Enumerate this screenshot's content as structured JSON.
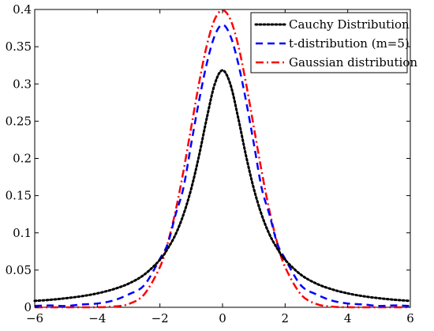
{
  "chart_data": {
    "type": "line",
    "title": "",
    "xlabel": "",
    "ylabel": "",
    "xlim": [
      -6,
      6
    ],
    "ylim": [
      0,
      0.4
    ],
    "xticks": [
      "−6",
      "−4",
      "−2",
      "0",
      "2",
      "4",
      "6"
    ],
    "xtick_values": [
      -6,
      -4,
      -2,
      0,
      2,
      4,
      6
    ],
    "yticks": [
      "0",
      "0.05",
      "0.1",
      "0.15",
      "0.2",
      "0.25",
      "0.3",
      "0.35",
      "0.4"
    ],
    "ytick_values": [
      0,
      0.05,
      0.1,
      0.15,
      0.2,
      0.25,
      0.3,
      0.35,
      0.4
    ],
    "grid": false,
    "legend_position": "top-right",
    "x": [
      -6,
      -5.5,
      -5,
      -4.5,
      -4,
      -3.5,
      -3,
      -2.5,
      -2,
      -1.75,
      -1.5,
      -1.25,
      -1,
      -0.75,
      -0.5,
      -0.25,
      0,
      0.25,
      0.5,
      0.75,
      1,
      1.25,
      1.5,
      1.75,
      2,
      2.5,
      3,
      3.5,
      4,
      4.5,
      5,
      5.5,
      6
    ],
    "series": [
      {
        "name": "Cauchy Distribution",
        "color": "#000000",
        "dash": "dotted",
        "values": [
          0.0086,
          0.0101,
          0.0122,
          0.0149,
          0.0187,
          0.0241,
          0.0318,
          0.0439,
          0.0637,
          0.0789,
          0.0979,
          0.1243,
          0.1592,
          0.2037,
          0.2546,
          0.2996,
          0.3183,
          0.2996,
          0.2546,
          0.2037,
          0.1592,
          0.1243,
          0.0979,
          0.0789,
          0.0637,
          0.0439,
          0.0318,
          0.0241,
          0.0187,
          0.0149,
          0.0122,
          0.0101,
          0.0086
        ]
      },
      {
        "name": "t-distribution (m=5)",
        "color": "#0000ff",
        "dash": "dashed",
        "values": [
          0.0018,
          0.0025,
          0.0018,
          0.0038,
          0.0051,
          0.009,
          0.0173,
          0.0297,
          0.0651,
          0.0855,
          0.1245,
          0.1602,
          0.2197,
          0.2774,
          0.3279,
          0.3647,
          0.3796,
          0.3647,
          0.3279,
          0.2774,
          0.2197,
          0.1602,
          0.1245,
          0.0855,
          0.0651,
          0.0297,
          0.0173,
          0.009,
          0.0051,
          0.0038,
          0.0018,
          0.0025,
          0.0018
        ]
      },
      {
        "name": "Gaussian distribution",
        "color": "#ff0000",
        "dash": "dashdot",
        "values": [
          0.0,
          0.0,
          0.0,
          0.0,
          0.0001,
          0.0009,
          0.0044,
          0.0175,
          0.054,
          0.0863,
          0.1295,
          0.1826,
          0.242,
          0.3011,
          0.3521,
          0.3867,
          0.3989,
          0.3867,
          0.3521,
          0.3011,
          0.242,
          0.1826,
          0.1295,
          0.0863,
          0.054,
          0.0175,
          0.0044,
          0.0009,
          0.0001,
          0.0,
          0.0,
          0.0,
          0.0
        ]
      }
    ]
  }
}
